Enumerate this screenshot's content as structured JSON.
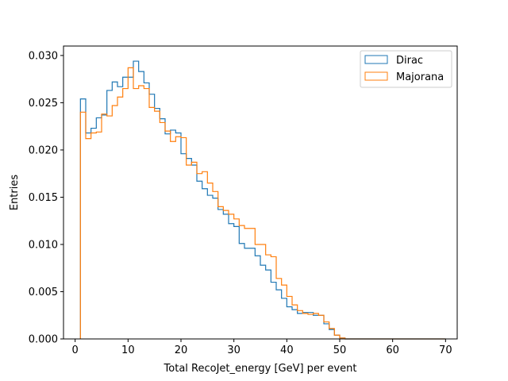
{
  "chart_data": {
    "type": "step-histogram",
    "xlabel": "Total RecoJet_energy [GeV] per event",
    "ylabel": "Entries",
    "xlim": [
      -2.2,
      72.2
    ],
    "ylim": [
      0,
      0.031
    ],
    "xticks": [
      0,
      10,
      20,
      30,
      40,
      50,
      60,
      70
    ],
    "xtick_labels": [
      "0",
      "10",
      "20",
      "30",
      "40",
      "50",
      "60",
      "70"
    ],
    "yticks": [
      0,
      0.005,
      0.01,
      0.015,
      0.02,
      0.025,
      0.03
    ],
    "ytick_labels": [
      "0.000",
      "0.005",
      "0.010",
      "0.015",
      "0.020",
      "0.025",
      "0.030"
    ],
    "legend_position": "top-right",
    "grid": false,
    "bin_edges": [
      1,
      2,
      3,
      4,
      5,
      6,
      7,
      8,
      9,
      10,
      11,
      12,
      13,
      14,
      15,
      16,
      17,
      18,
      19,
      20,
      21,
      22,
      23,
      24,
      25,
      26,
      27,
      28,
      29,
      30,
      31,
      32,
      33,
      34,
      35,
      36,
      37,
      38,
      39,
      40,
      41,
      42,
      43,
      44,
      45,
      46,
      47,
      48,
      49,
      50,
      51,
      52,
      53,
      54,
      55,
      56,
      57,
      58,
      59,
      60,
      61,
      62,
      63,
      64,
      65,
      66,
      67,
      68,
      69,
      70
    ],
    "series": [
      {
        "name": "Dirac",
        "color": "#1f77b4",
        "values": [
          0.0254,
          0.0218,
          0.0223,
          0.0234,
          0.0237,
          0.0263,
          0.0272,
          0.0267,
          0.0277,
          0.0277,
          0.0294,
          0.0283,
          0.0271,
          0.0259,
          0.0244,
          0.0233,
          0.0217,
          0.0221,
          0.0218,
          0.0196,
          0.0191,
          0.0184,
          0.0167,
          0.0159,
          0.0152,
          0.0149,
          0.0137,
          0.0132,
          0.0122,
          0.0119,
          0.0101,
          0.0096,
          0.0096,
          0.0088,
          0.0078,
          0.0073,
          0.006,
          0.0052,
          0.0043,
          0.0034,
          0.0031,
          0.0027,
          0.0028,
          0.0028,
          0.0025,
          0.0025,
          0.0016,
          0.001,
          0.0004,
          0.0001,
          0.0,
          0.0,
          0.0,
          0.0,
          0.0,
          0.0,
          0.0,
          0.0,
          0.0,
          0.0,
          0.0,
          0.0,
          0.0,
          0.0,
          0.0,
          0.0,
          0.0,
          0.0,
          0.0
        ]
      },
      {
        "name": "Majorana",
        "color": "#ff7f0e",
        "values": [
          0.024,
          0.0212,
          0.0218,
          0.0219,
          0.0238,
          0.0236,
          0.0247,
          0.0256,
          0.0265,
          0.0287,
          0.0265,
          0.0268,
          0.0265,
          0.0245,
          0.0241,
          0.0229,
          0.022,
          0.0209,
          0.0214,
          0.0213,
          0.0184,
          0.0187,
          0.0175,
          0.0177,
          0.0165,
          0.0156,
          0.014,
          0.0136,
          0.0132,
          0.0127,
          0.012,
          0.0117,
          0.0117,
          0.01,
          0.01,
          0.0089,
          0.0087,
          0.0064,
          0.0057,
          0.0045,
          0.0036,
          0.003,
          0.0027,
          0.0026,
          0.0027,
          0.0025,
          0.0018,
          0.0011,
          0.0004,
          0.0001,
          0.0,
          0.0,
          0.0,
          0.0,
          0.0,
          0.0,
          0.0,
          0.0,
          0.0,
          0.0,
          0.0,
          0.0,
          0.0,
          0.0,
          0.0,
          0.0,
          0.0,
          0.0,
          0.0
        ]
      }
    ]
  }
}
